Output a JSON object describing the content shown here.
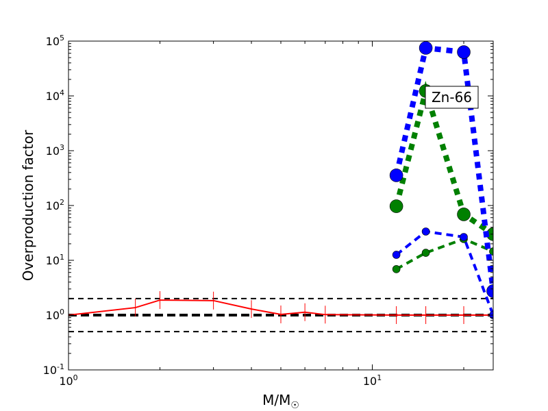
{
  "chart_data": {
    "type": "line",
    "title": "",
    "xlabel": "M/M",
    "xlabel_subscript": "☉",
    "ylabel": "Overproduction factor",
    "xscale": "log",
    "yscale": "log",
    "xlim": [
      1,
      25
    ],
    "ylim": [
      0.1,
      100000
    ],
    "x_tick_labels": [
      {
        "base": "10",
        "exp": "0",
        "value": 1
      },
      {
        "base": "10",
        "exp": "1",
        "value": 10
      }
    ],
    "y_tick_labels": [
      {
        "base": "10",
        "exp": "-1",
        "value": 0.1
      },
      {
        "base": "10",
        "exp": "0",
        "value": 1
      },
      {
        "base": "10",
        "exp": "1",
        "value": 10
      },
      {
        "base": "10",
        "exp": "2",
        "value": 100
      },
      {
        "base": "10",
        "exp": "3",
        "value": 1000
      },
      {
        "base": "10",
        "exp": "4",
        "value": 10000
      },
      {
        "base": "10",
        "exp": "5",
        "value": 100000
      }
    ],
    "annotation": "Zn-66",
    "annotation_position": "top-right",
    "reference_lines": [
      {
        "y": 2,
        "style": "dashed",
        "color": "#000000",
        "width": "thin"
      },
      {
        "y": 1,
        "style": "dashed",
        "color": "#000000",
        "width": "thick"
      },
      {
        "y": 0.5,
        "style": "dashed",
        "color": "#000000",
        "width": "thin"
      }
    ],
    "series": [
      {
        "name": "red-solid",
        "color": "#ff0000",
        "style": "solid",
        "marker": "vline",
        "x": [
          1,
          1.66,
          2,
          3,
          4,
          5,
          6,
          7,
          12,
          15,
          20,
          25
        ],
        "y": [
          1.0,
          1.37,
          1.88,
          1.84,
          1.29,
          1.03,
          1.13,
          1.02,
          1.0,
          1.0,
          1.0,
          1.0
        ]
      },
      {
        "name": "green-small",
        "color": "#008000",
        "style": "dashed",
        "marker": "small-circle",
        "x": [
          12,
          15,
          20,
          25
        ],
        "y": [
          6.9,
          13.7,
          24.5,
          14.5
        ]
      },
      {
        "name": "blue-small",
        "color": "#0000ff",
        "style": "dashed",
        "marker": "small-circle",
        "x": [
          12,
          15,
          20,
          25
        ],
        "y": [
          12.6,
          33.5,
          26.6,
          1.0
        ]
      },
      {
        "name": "green-large",
        "color": "#008000",
        "style": "dotted",
        "marker": "large-circle",
        "x": [
          12,
          15,
          20,
          25
        ],
        "y": [
          97,
          12300,
          69,
          30
        ]
      },
      {
        "name": "blue-large",
        "color": "#0000ff",
        "style": "dotted",
        "marker": "large-circle",
        "x": [
          12,
          15,
          20,
          25
        ],
        "y": [
          355,
          75000,
          63000,
          2.74
        ]
      }
    ]
  }
}
